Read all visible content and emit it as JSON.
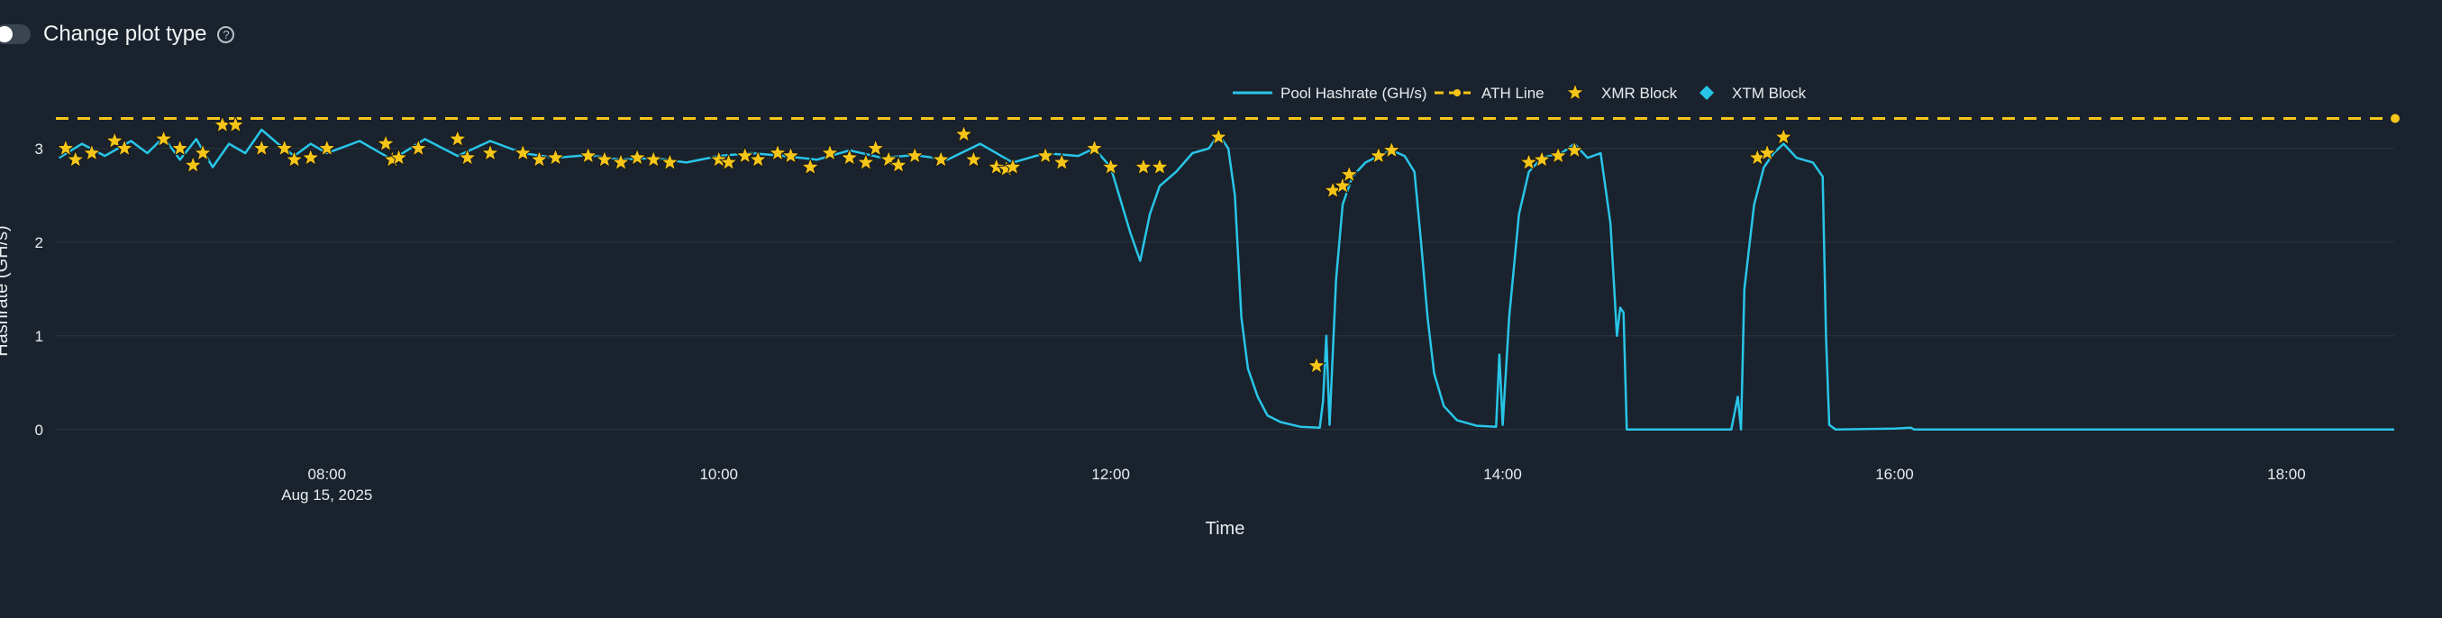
{
  "header": {
    "toggle_label": "Change plot type",
    "help_icon_glyph": "?"
  },
  "chart_data": {
    "type": "line",
    "title": "",
    "xlabel": "Time",
    "ylabel": "Hashrate (GH/s)",
    "ylim": [
      -0.3,
      3.45
    ],
    "xlim": [
      "06:37",
      "18:33"
    ],
    "x_ticks": [
      {
        "time": "08:00",
        "label": "08:00",
        "sublabel": "Aug 15, 2025"
      },
      {
        "time": "10:00",
        "label": "10:00"
      },
      {
        "time": "12:00",
        "label": "12:00"
      },
      {
        "time": "14:00",
        "label": "14:00"
      },
      {
        "time": "16:00",
        "label": "16:00"
      },
      {
        "time": "18:00",
        "label": "18:00"
      }
    ],
    "y_ticks": [
      0,
      1,
      2,
      3
    ],
    "grid": true,
    "legend_position": "top-right",
    "legend": [
      "Pool Hashrate (GH/s)",
      "ATH Line",
      "XMR Block",
      "XTM Block"
    ],
    "colors": {
      "hashrate": "#29c5e8",
      "ath": "#f5c518",
      "xmr_marker": "#f5c518",
      "xtm_marker": "#29c5e8",
      "grid": "#2b3640"
    },
    "ath_value": 3.32,
    "series": [
      {
        "name": "Pool Hashrate (GH/s)",
        "points": [
          [
            "06:38",
            2.9
          ],
          [
            "06:45",
            3.05
          ],
          [
            "06:52",
            2.92
          ],
          [
            "07:00",
            3.08
          ],
          [
            "07:05",
            2.95
          ],
          [
            "07:10",
            3.12
          ],
          [
            "07:15",
            2.88
          ],
          [
            "07:20",
            3.1
          ],
          [
            "07:25",
            2.8
          ],
          [
            "07:30",
            3.05
          ],
          [
            "07:35",
            2.95
          ],
          [
            "07:40",
            3.2
          ],
          [
            "07:45",
            3.05
          ],
          [
            "07:50",
            2.92
          ],
          [
            "07:55",
            3.05
          ],
          [
            "08:00",
            2.95
          ],
          [
            "08:10",
            3.08
          ],
          [
            "08:20",
            2.88
          ],
          [
            "08:30",
            3.1
          ],
          [
            "08:40",
            2.92
          ],
          [
            "08:50",
            3.08
          ],
          [
            "09:00",
            2.95
          ],
          [
            "09:10",
            2.9
          ],
          [
            "09:20",
            2.93
          ],
          [
            "09:30",
            2.88
          ],
          [
            "09:40",
            2.9
          ],
          [
            "09:50",
            2.85
          ],
          [
            "10:00",
            2.92
          ],
          [
            "10:10",
            2.95
          ],
          [
            "10:20",
            2.92
          ],
          [
            "10:30",
            2.88
          ],
          [
            "10:40",
            2.98
          ],
          [
            "10:50",
            2.9
          ],
          [
            "11:00",
            2.93
          ],
          [
            "11:10",
            2.88
          ],
          [
            "11:20",
            3.05
          ],
          [
            "11:30",
            2.85
          ],
          [
            "11:40",
            2.95
          ],
          [
            "11:50",
            2.92
          ],
          [
            "11:55",
            3.0
          ],
          [
            "12:00",
            2.8
          ],
          [
            "12:03",
            2.45
          ],
          [
            "12:06",
            2.1
          ],
          [
            "12:09",
            1.8
          ],
          [
            "12:12",
            2.3
          ],
          [
            "12:15",
            2.6
          ],
          [
            "12:20",
            2.75
          ],
          [
            "12:25",
            2.95
          ],
          [
            "12:30",
            3.0
          ],
          [
            "12:33",
            3.15
          ],
          [
            "12:36",
            3.0
          ],
          [
            "12:38",
            2.5
          ],
          [
            "12:40",
            1.2
          ],
          [
            "12:42",
            0.65
          ],
          [
            "12:45",
            0.35
          ],
          [
            "12:48",
            0.15
          ],
          [
            "12:52",
            0.08
          ],
          [
            "12:58",
            0.03
          ],
          [
            "13:04",
            0.02
          ],
          [
            "13:05",
            0.3
          ],
          [
            "13:06",
            1.0
          ],
          [
            "13:07",
            0.05
          ],
          [
            "13:09",
            1.6
          ],
          [
            "13:11",
            2.4
          ],
          [
            "13:14",
            2.7
          ],
          [
            "13:18",
            2.85
          ],
          [
            "13:22",
            2.92
          ],
          [
            "13:26",
            2.98
          ],
          [
            "13:30",
            2.92
          ],
          [
            "13:33",
            2.75
          ],
          [
            "13:35",
            2.0
          ],
          [
            "13:37",
            1.2
          ],
          [
            "13:39",
            0.6
          ],
          [
            "13:42",
            0.25
          ],
          [
            "13:46",
            0.1
          ],
          [
            "13:52",
            0.04
          ],
          [
            "13:58",
            0.03
          ],
          [
            "13:59",
            0.8
          ],
          [
            "14:00",
            0.05
          ],
          [
            "14:02",
            1.2
          ],
          [
            "14:05",
            2.3
          ],
          [
            "14:08",
            2.75
          ],
          [
            "14:12",
            2.9
          ],
          [
            "14:18",
            2.95
          ],
          [
            "14:22",
            3.05
          ],
          [
            "14:26",
            2.9
          ],
          [
            "14:30",
            2.95
          ],
          [
            "14:33",
            2.2
          ],
          [
            "14:35",
            1.0
          ],
          [
            "14:36",
            1.3
          ],
          [
            "14:37",
            1.25
          ],
          [
            "14:38",
            0.0
          ],
          [
            "15:00",
            0.0
          ],
          [
            "15:10",
            0.0
          ],
          [
            "15:12",
            0.35
          ],
          [
            "15:13",
            0.0
          ],
          [
            "15:14",
            1.5
          ],
          [
            "15:17",
            2.4
          ],
          [
            "15:20",
            2.8
          ],
          [
            "15:23",
            2.95
          ],
          [
            "15:26",
            3.05
          ],
          [
            "15:30",
            2.9
          ],
          [
            "15:35",
            2.85
          ],
          [
            "15:38",
            2.7
          ],
          [
            "15:39",
            1.0
          ],
          [
            "15:40",
            0.05
          ],
          [
            "15:42",
            0.0
          ],
          [
            "16:00",
            0.01
          ],
          [
            "16:05",
            0.02
          ],
          [
            "16:06",
            0.0
          ],
          [
            "17:00",
            0.0
          ],
          [
            "18:33",
            0.0
          ]
        ]
      }
    ],
    "xmr_blocks": [
      [
        "06:40",
        3.0
      ],
      [
        "06:43",
        2.88
      ],
      [
        "06:48",
        2.95
      ],
      [
        "06:55",
        3.08
      ],
      [
        "06:58",
        3.0
      ],
      [
        "07:10",
        3.1
      ],
      [
        "07:15",
        3.0
      ],
      [
        "07:19",
        2.82
      ],
      [
        "07:22",
        2.95
      ],
      [
        "07:28",
        3.25
      ],
      [
        "07:32",
        3.25
      ],
      [
        "07:40",
        3.0
      ],
      [
        "07:47",
        3.0
      ],
      [
        "07:50",
        2.88
      ],
      [
        "07:55",
        2.9
      ],
      [
        "08:00",
        3.0
      ],
      [
        "08:18",
        3.05
      ],
      [
        "08:20",
        2.88
      ],
      [
        "08:22",
        2.9
      ],
      [
        "08:28",
        3.0
      ],
      [
        "08:40",
        3.1
      ],
      [
        "08:43",
        2.9
      ],
      [
        "08:50",
        2.95
      ],
      [
        "09:00",
        2.95
      ],
      [
        "09:05",
        2.88
      ],
      [
        "09:10",
        2.9
      ],
      [
        "09:20",
        2.92
      ],
      [
        "09:25",
        2.88
      ],
      [
        "09:30",
        2.85
      ],
      [
        "09:35",
        2.9
      ],
      [
        "09:40",
        2.88
      ],
      [
        "09:45",
        2.85
      ],
      [
        "10:00",
        2.88
      ],
      [
        "10:03",
        2.85
      ],
      [
        "10:08",
        2.92
      ],
      [
        "10:12",
        2.88
      ],
      [
        "10:18",
        2.95
      ],
      [
        "10:22",
        2.92
      ],
      [
        "10:28",
        2.8
      ],
      [
        "10:34",
        2.95
      ],
      [
        "10:40",
        2.9
      ],
      [
        "10:45",
        2.85
      ],
      [
        "10:48",
        3.0
      ],
      [
        "10:52",
        2.88
      ],
      [
        "10:55",
        2.82
      ],
      [
        "11:00",
        2.92
      ],
      [
        "11:08",
        2.88
      ],
      [
        "11:15",
        3.15
      ],
      [
        "11:18",
        2.88
      ],
      [
        "11:25",
        2.8
      ],
      [
        "11:28",
        2.78
      ],
      [
        "11:30",
        2.8
      ],
      [
        "11:40",
        2.92
      ],
      [
        "11:45",
        2.85
      ],
      [
        "11:55",
        3.0
      ],
      [
        "12:00",
        2.8
      ],
      [
        "12:10",
        2.8
      ],
      [
        "12:15",
        2.8
      ],
      [
        "12:33",
        3.12
      ],
      [
        "13:03",
        0.68
      ],
      [
        "13:08",
        2.55
      ],
      [
        "13:11",
        2.6
      ],
      [
        "13:13",
        2.72
      ],
      [
        "13:22",
        2.92
      ],
      [
        "13:26",
        2.98
      ],
      [
        "14:08",
        2.85
      ],
      [
        "14:12",
        2.88
      ],
      [
        "14:17",
        2.92
      ],
      [
        "14:22",
        2.98
      ],
      [
        "15:18",
        2.9
      ],
      [
        "15:21",
        2.95
      ],
      [
        "15:26",
        3.12
      ]
    ],
    "xtm_blocks": []
  }
}
